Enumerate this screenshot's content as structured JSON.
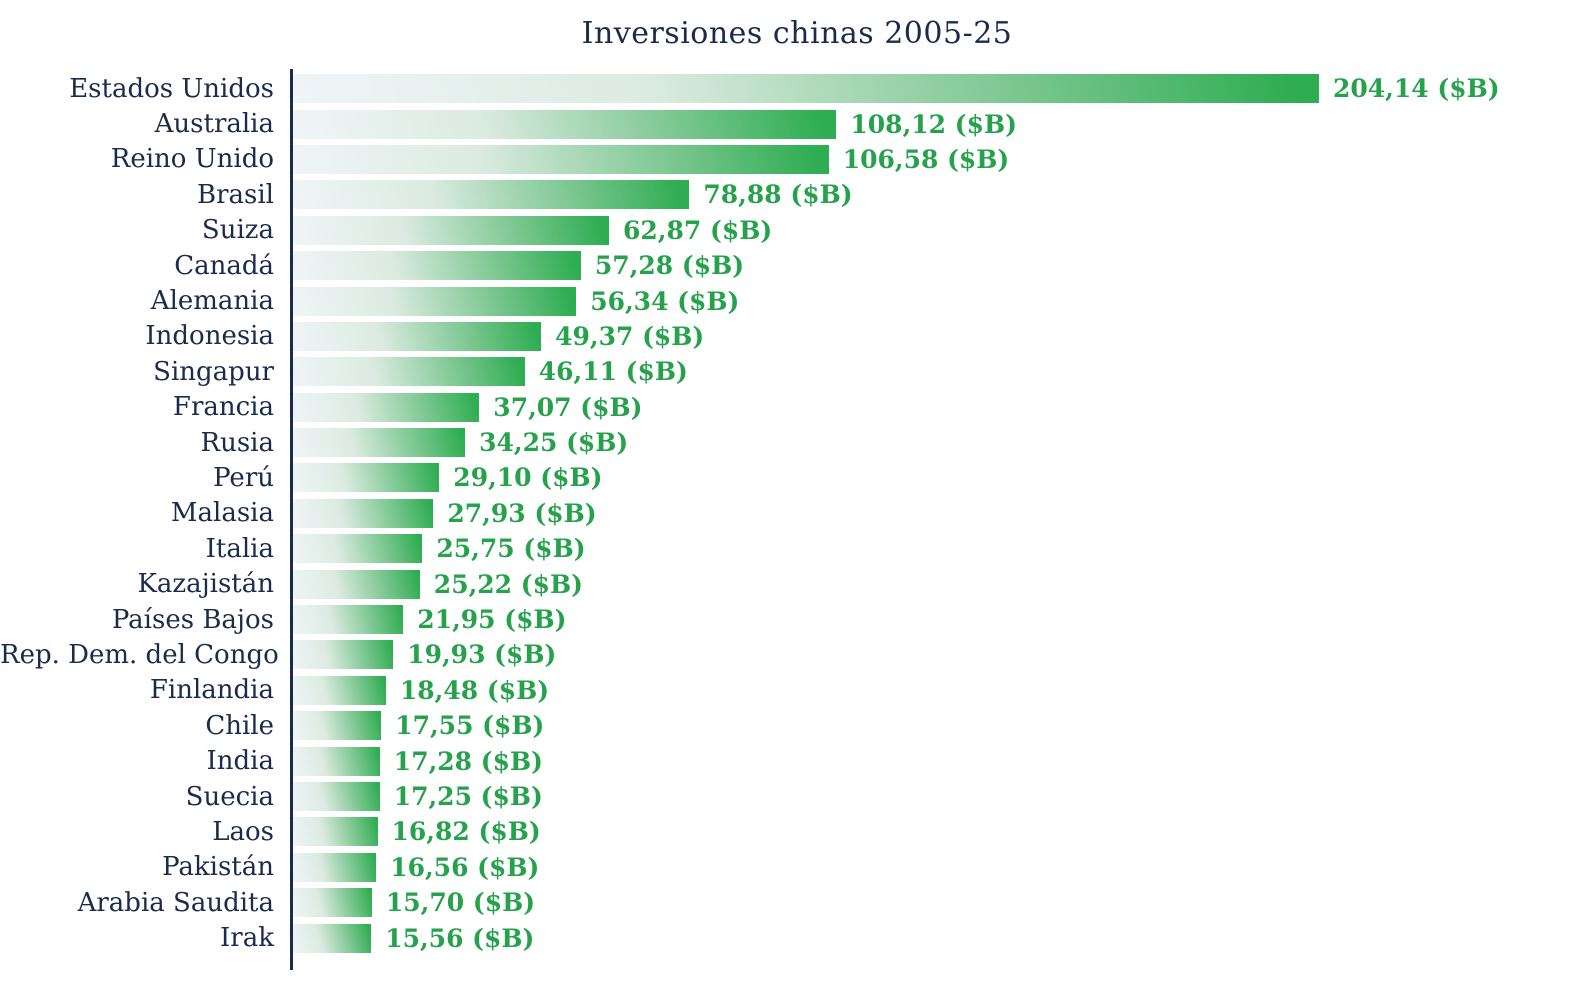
{
  "title": "Inversiones chinas 2005-25",
  "chart_data": {
    "type": "bar",
    "orientation": "horizontal",
    "title": "Inversiones chinas 2005-25",
    "xlabel": "",
    "ylabel": "",
    "unit": "$B",
    "grid": false,
    "legend": false,
    "xlim": [
      0,
      210
    ],
    "categories": [
      "Estados Unidos",
      "Australia",
      "Reino Unido",
      "Brasil",
      "Suiza",
      "Canadá",
      "Alemania",
      "Indonesia",
      "Singapur",
      "Francia",
      "Rusia",
      "Perú",
      "Malasia",
      "Italia",
      "Kazajistán",
      "Países Bajos",
      "Rep. Dem. del Congo",
      "Finlandia",
      "Chile",
      "India",
      "Suecia",
      "Laos",
      "Pakistán",
      "Arabia Saudita",
      "Irak"
    ],
    "values": [
      204.14,
      108.12,
      106.58,
      78.88,
      62.87,
      57.28,
      56.34,
      49.37,
      46.11,
      37.07,
      34.25,
      29.1,
      27.93,
      25.75,
      25.22,
      21.95,
      19.93,
      18.48,
      17.55,
      17.28,
      17.25,
      16.82,
      16.56,
      15.7,
      15.56
    ],
    "value_labels": [
      "204,14 ($B)",
      "108,12 ($B)",
      "106,58 ($B)",
      "78,88 ($B)",
      "62,87 ($B)",
      "57,28 ($B)",
      "56,34 ($B)",
      "49,37 ($B)",
      "46,11 ($B)",
      "37,07 ($B)",
      "34,25 ($B)",
      "29,10 ($B)",
      "27,93 ($B)",
      "25,75 ($B)",
      "25,22 ($B)",
      "21,95 ($B)",
      "19,93 ($B)",
      "18,48 ($B)",
      "17,55 ($B)",
      "17,28 ($B)",
      "17,25 ($B)",
      "16,82 ($B)",
      "16,56 ($B)",
      "15,70 ($B)",
      "15,56 ($B)"
    ],
    "colors": {
      "title_text": "#1b2b4c",
      "category_text": "#1b2b4c",
      "value_text": "#26a24c",
      "axis_line": "#1b2b4c",
      "bar_gradient_start": "#eff5f8",
      "bar_gradient_end": "#2fad52",
      "background": "#ffffff"
    }
  }
}
